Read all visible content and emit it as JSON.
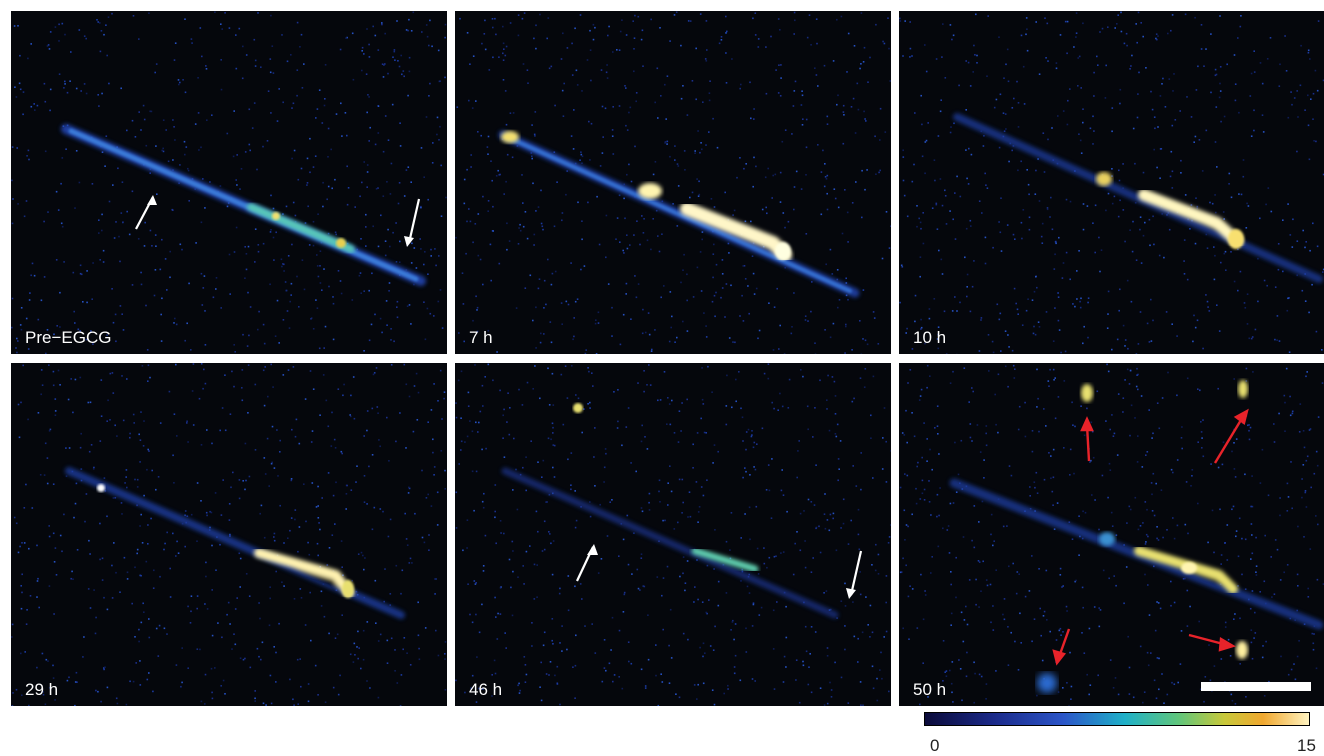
{
  "panels": [
    {
      "label": "Pre−EGCG"
    },
    {
      "label": "7 h"
    },
    {
      "label": "10 h"
    },
    {
      "label": "29 h"
    },
    {
      "label": "46 h"
    },
    {
      "label": "50 h"
    }
  ],
  "colorbar": {
    "min": "0",
    "max": "15"
  },
  "colors": {
    "background": "#05070c",
    "fiber_low": "#1b3aa8",
    "fiber_mid": "#3fd0d0",
    "fiber_high": "#fff6b0",
    "arrow_white": "#ffffff",
    "arrow_red": "#e8232a"
  }
}
